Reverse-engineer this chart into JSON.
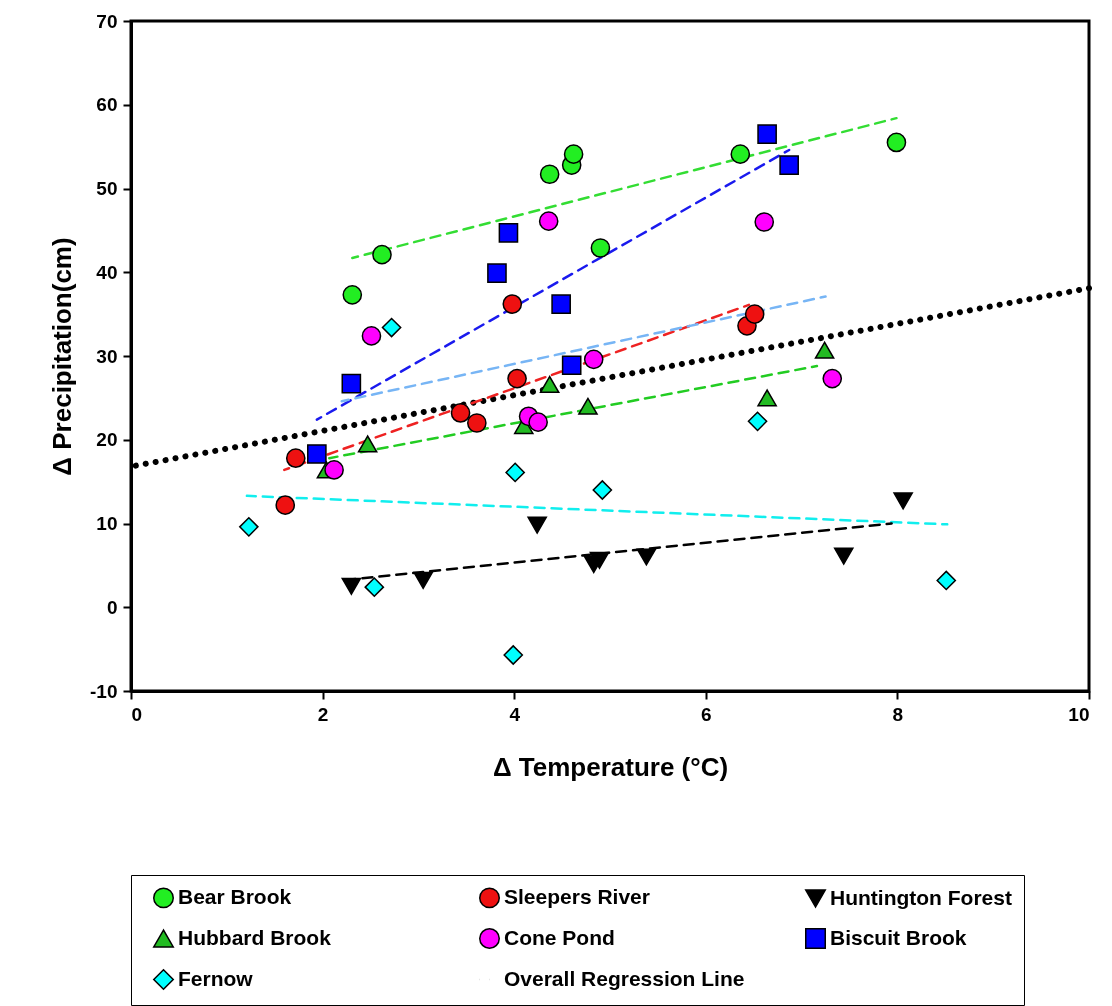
{
  "chart_data": {
    "type": "scatter",
    "xlabel": "Δ Temperature (°C)",
    "ylabel": "Δ Precipitation(cm)",
    "xlim": [
      0,
      10
    ],
    "xticks": [
      0,
      2,
      4,
      6,
      8,
      10
    ],
    "ylim": [
      -10,
      70
    ],
    "yticks": [
      -10,
      0,
      10,
      20,
      30,
      40,
      50,
      60,
      70
    ],
    "grid": false,
    "legend": "bottom",
    "series": [
      {
        "name": "Bear Brook",
        "marker": "circle",
        "color": "#22ee22",
        "x": [
          2.31,
          2.62,
          4.37,
          4.6,
          4.62,
          4.9,
          6.36,
          7.99
        ],
        "values": [
          37.3,
          42.1,
          51.7,
          52.8,
          54.1,
          42.9,
          54.1,
          55.5
        ]
      },
      {
        "name": "Sleepers River",
        "marker": "circle",
        "color": "#ee1111",
        "x": [
          1.61,
          1.72,
          3.44,
          3.61,
          4.03,
          3.98,
          6.43,
          6.51
        ],
        "values": [
          12.2,
          17.8,
          23.2,
          22.0,
          27.3,
          36.2,
          33.6,
          35.0
        ]
      },
      {
        "name": "Huntington Forest",
        "marker": "triangle-down",
        "color": "#000000",
        "x": [
          2.3,
          3.05,
          4.24,
          4.83,
          4.89,
          5.38,
          7.44,
          8.06
        ],
        "values": [
          2.5,
          3.2,
          9.8,
          5.1,
          5.6,
          6.0,
          6.1,
          12.7
        ]
      },
      {
        "name": "Hubbard Brook",
        "marker": "triangle",
        "color": "#22bb22",
        "x": [
          2.04,
          2.47,
          4.1,
          4.37,
          4.77,
          6.64,
          7.24
        ],
        "values": [
          16.4,
          19.5,
          21.7,
          26.6,
          24.0,
          25.0,
          30.7
        ]
      },
      {
        "name": "Cone Pond",
        "marker": "circle",
        "color": "#ff00ff",
        "x": [
          2.12,
          2.51,
          4.36,
          4.15,
          4.25,
          4.83,
          6.61,
          7.32
        ],
        "values": [
          16.4,
          32.4,
          46.1,
          22.8,
          22.1,
          29.6,
          46.0,
          27.3
        ]
      },
      {
        "name": "Biscuit Brook",
        "marker": "square",
        "color": "#0000ff",
        "x": [
          1.94,
          2.3,
          3.82,
          3.94,
          4.49,
          4.6,
          6.64,
          6.87
        ],
        "values": [
          18.3,
          26.7,
          39.9,
          44.7,
          36.2,
          28.9,
          56.5,
          52.8
        ]
      },
      {
        "name": "Fernow",
        "marker": "diamond",
        "color": "#00ffff",
        "x": [
          1.23,
          2.72,
          2.54,
          4.01,
          3.99,
          4.92,
          6.54,
          8.51
        ],
        "values": [
          9.6,
          33.4,
          2.4,
          16.1,
          -5.7,
          14.0,
          22.2,
          3.2
        ]
      },
      {
        "name": "Overall Regression Line",
        "type": "line",
        "line_style": "dotted",
        "color": "#000000",
        "x": [
          0,
          10
        ],
        "values": [
          16.8,
          38.1
        ]
      },
      {
        "type": "line",
        "line_style": "dashed",
        "color": "#33dd33",
        "x": [
          2.31,
          7.99
        ],
        "values": [
          41.7,
          58.4
        ]
      },
      {
        "type": "line",
        "line_style": "dashed",
        "color": "#1a1aee",
        "x": [
          1.94,
          6.87
        ],
        "values": [
          22.4,
          54.6
        ]
      },
      {
        "type": "line",
        "line_style": "dashed",
        "color": "#ee2222",
        "x": [
          1.6,
          6.45
        ],
        "values": [
          16.4,
          36.1
        ]
      },
      {
        "type": "line",
        "line_style": "dashed",
        "color": "#77b5f5",
        "x": [
          2.2,
          7.25
        ],
        "values": [
          24.6,
          37.1
        ]
      },
      {
        "type": "line",
        "line_style": "dashed",
        "color": "#22cc22",
        "x": [
          2.07,
          7.16
        ],
        "values": [
          17.8,
          28.8
        ]
      },
      {
        "type": "line",
        "line_style": "dashed",
        "color": "#11eeee",
        "x": [
          1.21,
          8.52
        ],
        "values": [
          13.3,
          9.9
        ]
      },
      {
        "type": "line",
        "line_style": "dashed",
        "color": "#000000",
        "x": [
          2.2,
          7.94
        ],
        "values": [
          3.2,
          10.0
        ]
      }
    ]
  }
}
